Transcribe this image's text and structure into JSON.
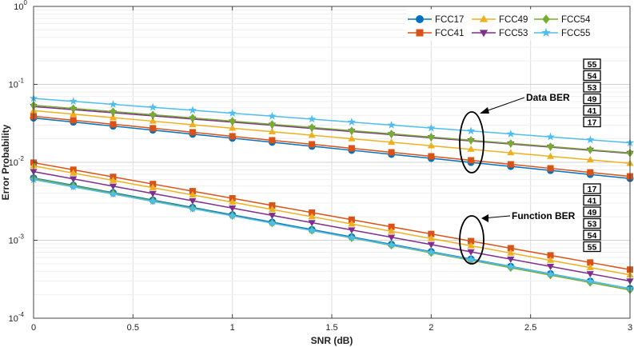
{
  "chart_data": {
    "type": "line",
    "xlabel": "SNR (dB)",
    "ylabel": "Error Probability",
    "yscale": "log",
    "xlim": [
      0,
      3
    ],
    "ylim": [
      0.0001,
      1
    ],
    "grid": true,
    "legend_position": "top-right",
    "x": [
      0,
      0.2,
      0.4,
      0.6,
      0.8,
      1.0,
      1.2,
      1.4,
      1.6,
      1.8,
      2.0,
      2.2,
      2.4,
      2.6,
      2.8,
      3.0
    ],
    "x_ticks": [
      "0",
      "0.5",
      "1",
      "1.5",
      "2",
      "2.5",
      "3"
    ],
    "x_tick_values": [
      0,
      0.5,
      1,
      1.5,
      2,
      2.5,
      3
    ],
    "y_ticks": [
      {
        "base": "10",
        "exp": "0",
        "value": 1
      },
      {
        "base": "10",
        "exp": "-1",
        "value": 0.1
      },
      {
        "base": "10",
        "exp": "-2",
        "value": 0.01
      },
      {
        "base": "10",
        "exp": "-3",
        "value": 0.001
      },
      {
        "base": "10",
        "exp": "-4",
        "value": 0.0001
      }
    ],
    "series": [
      {
        "name": "FCC17",
        "color": "#0072BD",
        "marker": "circle",
        "data_ber_range": [
          0.037,
          0.0062
        ],
        "function_ber_range": [
          0.0063,
          0.00024
        ]
      },
      {
        "name": "FCC41",
        "color": "#D95319",
        "marker": "square",
        "data_ber_range": [
          0.039,
          0.0066
        ],
        "function_ber_range": [
          0.0099,
          0.00042
        ]
      },
      {
        "name": "FCC49",
        "color": "#EDB120",
        "marker": "triangle-up",
        "data_ber_range": [
          0.046,
          0.0097
        ],
        "function_ber_range": [
          0.009,
          0.00036
        ]
      },
      {
        "name": "FCC53",
        "color": "#7E2F8E",
        "marker": "triangle-down",
        "data_ber_range": [
          0.052,
          0.013
        ],
        "function_ber_range": [
          0.0076,
          0.0003
        ]
      },
      {
        "name": "FCC54",
        "color": "#77AC30",
        "marker": "diamond",
        "data_ber_range": [
          0.054,
          0.0132
        ],
        "function_ber_range": [
          0.0062,
          0.00023
        ]
      },
      {
        "name": "FCC55",
        "color": "#4DBEEE",
        "marker": "star",
        "data_ber_range": [
          0.066,
          0.0178
        ],
        "function_ber_range": [
          0.006,
          0.00024
        ]
      }
    ],
    "annotations": {
      "data_ber": {
        "label": "Data BER",
        "order": [
          "55",
          "54",
          "53",
          "49",
          "41",
          "17"
        ]
      },
      "function_ber": {
        "label": "Function BER",
        "order": [
          "17",
          "41",
          "49",
          "53",
          "54",
          "55"
        ]
      }
    }
  }
}
